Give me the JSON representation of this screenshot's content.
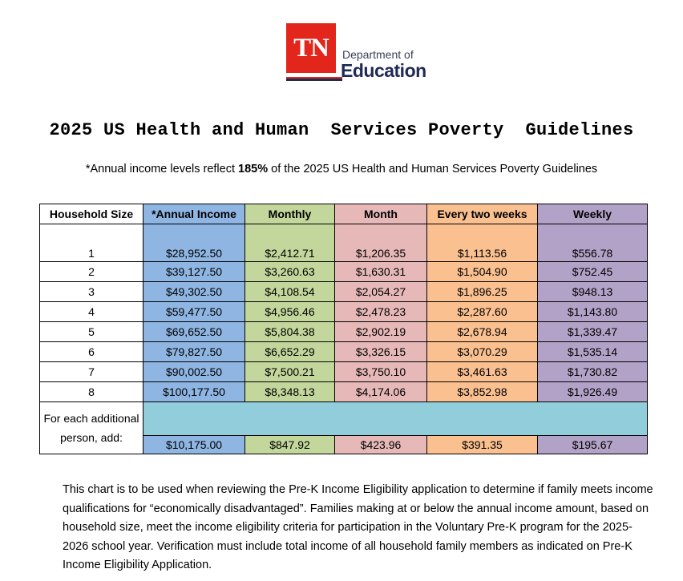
{
  "logo": {
    "mark": "TN",
    "line1": "Department of",
    "line2": "Education"
  },
  "title": "2025 US Health and Human  Services Poverty  Guidelines",
  "subtitle": {
    "prefix": "*Annual income levels reflect ",
    "bold": "185%",
    "suffix": " of the 2025 US Health and Human Services Poverty Guidelines"
  },
  "table": {
    "headers": [
      "Household Size",
      "*Annual Income",
      "Monthly",
      "Month",
      "Every two weeks",
      "Weekly"
    ],
    "rows": [
      [
        "1",
        "$28,952.50",
        "$2,412.71",
        "$1,206.35",
        "$1,113.56",
        "$556.78"
      ],
      [
        "2",
        "$39,127.50",
        "$3,260.63",
        "$1,630.31",
        "$1,504.90",
        "$752.45"
      ],
      [
        "3",
        "$49,302.50",
        "$4,108.54",
        "$2,054.27",
        "$1,896.25",
        "$948.13"
      ],
      [
        "4",
        "$59,477.50",
        "$4,956.46",
        "$2,478.23",
        "$2,287.60",
        "$1,143.80"
      ],
      [
        "5",
        "$69,652.50",
        "$5,804.38",
        "$2,902.19",
        "$2,678.94",
        "$1,339.47"
      ],
      [
        "6",
        "$79,827.50",
        "$6,652.29",
        "$3,326.15",
        "$3,070.29",
        "$1,535.14"
      ],
      [
        "7",
        "$90,002.50",
        "$7,500.21",
        "$3,750.10",
        "$3,461.63",
        "$1,730.82"
      ],
      [
        "8",
        "$100,177.50",
        "$8,348.13",
        "$4,174.06",
        "$3,852.98",
        "$1,926.49"
      ]
    ],
    "additional": {
      "label": "For each additional person, add:",
      "values": [
        "$10,175.00",
        "$847.92",
        "$423.96",
        "$391.35",
        "$195.67"
      ]
    }
  },
  "paragraph": "This chart is to be used when reviewing the Pre-K Income Eligibility application to determine if family meets income qualifications for “economically disadvantaged”. Families making at or below the annual income amount, based on household size, meet the income eligibility criteria for participation in the Voluntary Pre-K program for the 2025-2026 school year. Verification must include total income of all household family members as indicated on Pre-K Income Eligibility Application.",
  "colors": {
    "brand_red": "#e2261c",
    "brand_navy": "#1f2a55",
    "annual": "#8fb5e3",
    "monthly": "#c3d69b",
    "month": "#e6b9b8",
    "biweekly": "#fac090",
    "weekly": "#b3a2c7",
    "additional_band": "#92cddc"
  }
}
